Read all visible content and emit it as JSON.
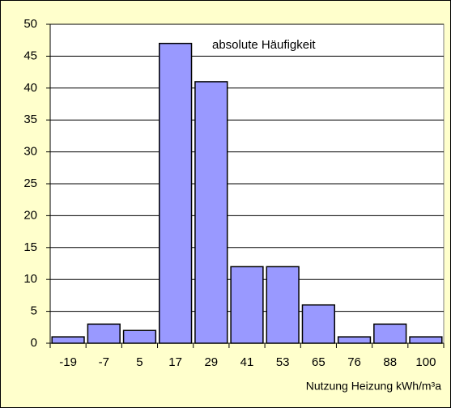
{
  "chart_data": {
    "type": "bar",
    "annotation": "absolute Häufigkeit",
    "x_label": "Nutzung Heizung kWh/m³a",
    "categories": [
      "-19",
      "-7",
      "5",
      "17",
      "29",
      "41",
      "53",
      "65",
      "76",
      "88",
      "100"
    ],
    "values": [
      1,
      3,
      2,
      47,
      41,
      12,
      12,
      6,
      1,
      3,
      1
    ],
    "color": "#9999ff",
    "ylim": [
      0,
      50
    ],
    "yticks": [
      0,
      5,
      10,
      15,
      20,
      25,
      30,
      35,
      40,
      45,
      50
    ],
    "grid": true
  }
}
